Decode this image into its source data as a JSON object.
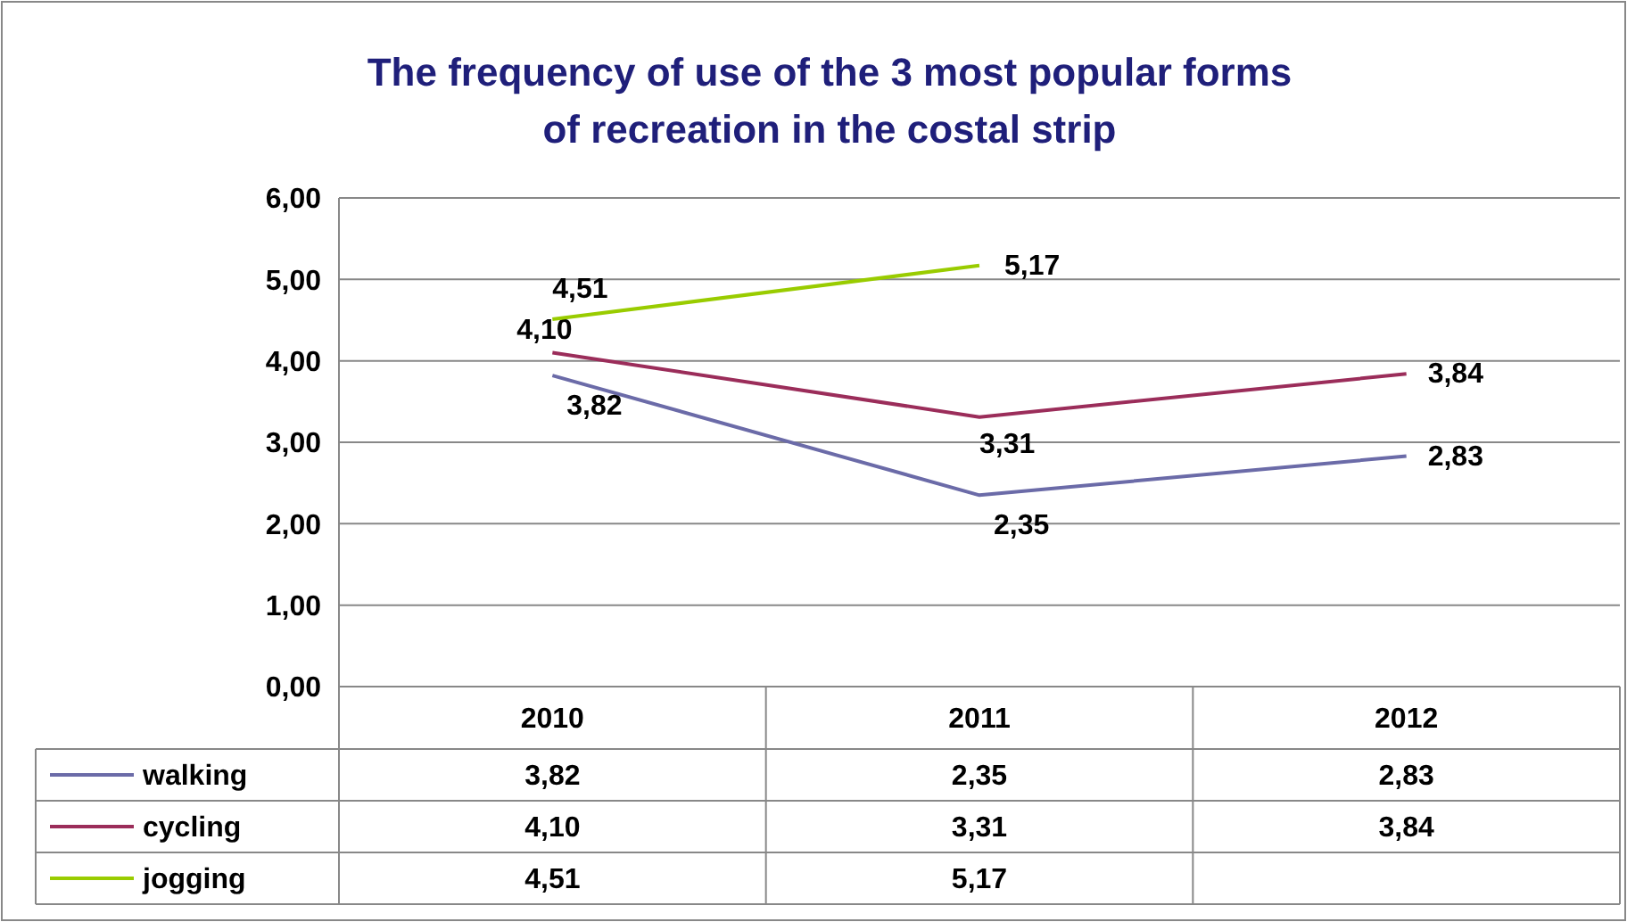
{
  "chart_data": {
    "type": "line",
    "title": "The frequency of use of the 3 most popular forms of recreation in the  costal strip",
    "categories": [
      "2010",
      "2011",
      "2012"
    ],
    "series": [
      {
        "name": "walking",
        "color": "#6b6ba8",
        "values": [
          3.82,
          2.35,
          2.83
        ],
        "value_labels": [
          "3,82",
          "2,35",
          "2,83"
        ]
      },
      {
        "name": "cycling",
        "color": "#9b2d5a",
        "values": [
          4.1,
          3.31,
          3.84
        ],
        "value_labels": [
          "4,10",
          "3,31",
          "3,84"
        ]
      },
      {
        "name": "jogging",
        "color": "#99cc00",
        "values": [
          4.51,
          5.17,
          null
        ],
        "value_labels": [
          "4,51",
          "5,17",
          null
        ]
      }
    ],
    "ylim": [
      0,
      6
    ],
    "yticks": [
      {
        "value": 0,
        "label": "0,00"
      },
      {
        "value": 1,
        "label": "1,00"
      },
      {
        "value": 2,
        "label": "2,00"
      },
      {
        "value": 3,
        "label": "3,00"
      },
      {
        "value": 4,
        "label": "4,00"
      },
      {
        "value": 5,
        "label": "5,00"
      },
      {
        "value": 6,
        "label": "6,00"
      }
    ],
    "grid": "y",
    "legend": "bottom left",
    "marker": "none",
    "line_style": "solid"
  }
}
